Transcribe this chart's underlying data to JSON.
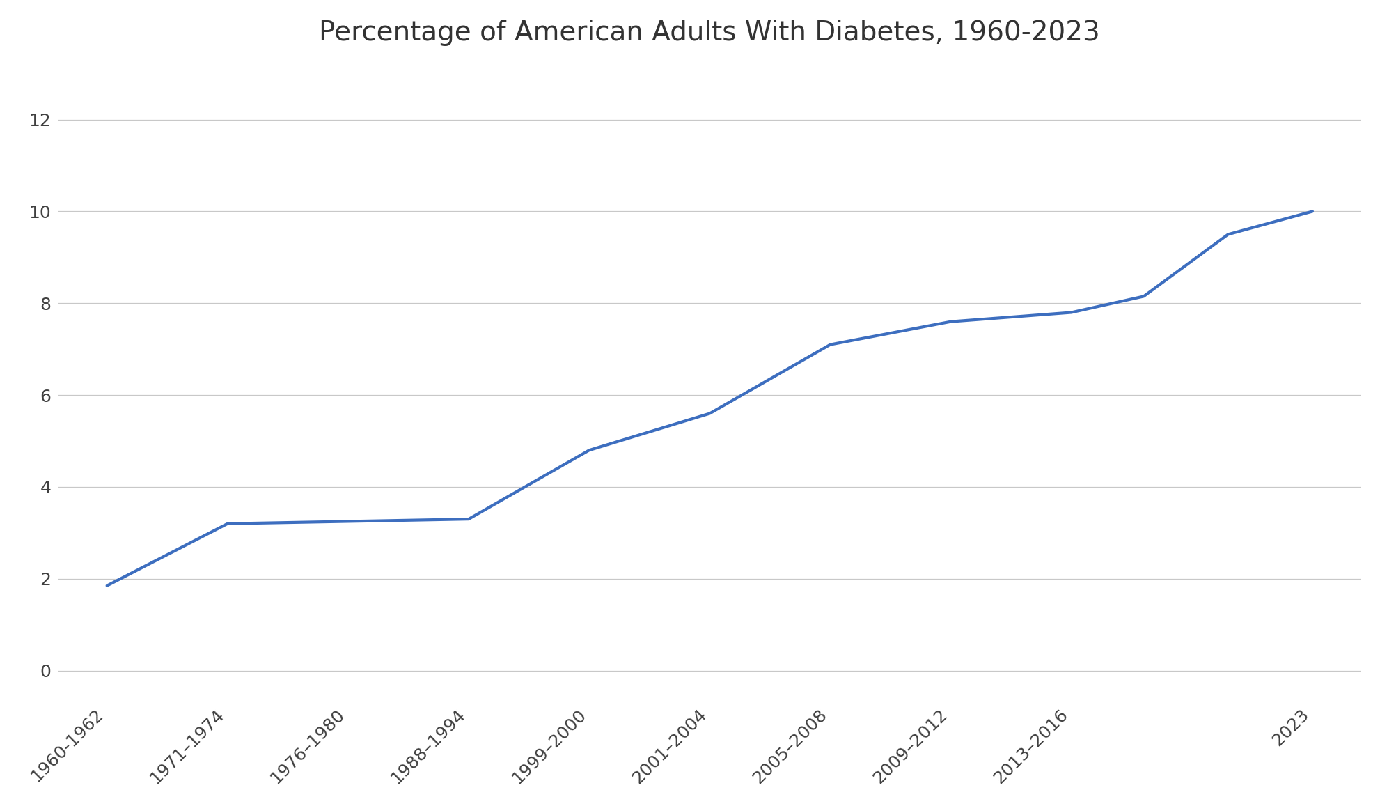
{
  "title": "Percentage of American Adults With Diabetes, 1960-2023",
  "x_labels": [
    "1960-1962",
    "1971–1974",
    "1976–1980",
    "1988–1994",
    "1999–2000",
    "2001–2004",
    "2005–2008",
    "2009–2012",
    "2013–2016",
    "2023"
  ],
  "y_data": [
    1.85,
    3.2,
    3.25,
    3.3,
    4.8,
    5.6,
    7.1,
    7.6,
    7.8,
    8.15,
    9.5,
    10.0
  ],
  "x_data": [
    0,
    1,
    2,
    3,
    4,
    5,
    6,
    7,
    8,
    8.6,
    9.3,
    10.0
  ],
  "line_color": "#3d6ebf",
  "line_width": 3.0,
  "background_color": "#ffffff",
  "grid_color": "#c8c8c8",
  "title_fontsize": 28,
  "tick_fontsize": 18,
  "ylim": [
    -0.6,
    13.2
  ],
  "xlim": [
    -0.4,
    10.4
  ],
  "yticks": [
    0,
    2,
    4,
    6,
    8,
    10,
    12
  ],
  "xtick_positions": [
    0,
    1,
    2,
    3,
    4,
    5,
    6,
    7,
    8,
    10.0
  ]
}
